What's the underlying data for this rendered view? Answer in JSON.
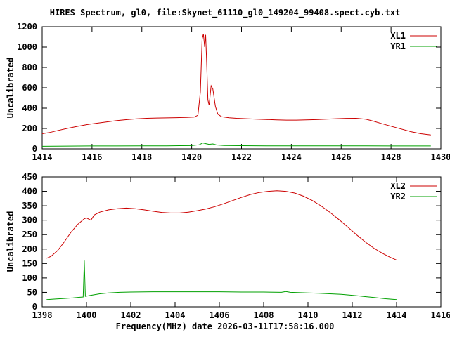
{
  "title": "HIRES Spectrum, gl0, file:Skynet_61110_gl0_149204_99408.spect.cyb.txt",
  "xlabel": "Frequency(MHz) date 2026-03-11T17:58:16.000",
  "colors": {
    "red": "#cc0000",
    "green": "#00a000",
    "axis": "#000000",
    "background": "#ffffff"
  },
  "chart_data": [
    {
      "type": "line",
      "ylabel": "Uncalibrated",
      "xlim": [
        1414,
        1430
      ],
      "ylim": [
        0,
        1200
      ],
      "xticks": [
        1414,
        1416,
        1418,
        1420,
        1422,
        1424,
        1426,
        1428,
        1430
      ],
      "yticks": [
        0,
        200,
        400,
        600,
        800,
        1000,
        1200
      ],
      "grid": false,
      "legend_position": "top-right",
      "series": [
        {
          "name": "XL1",
          "color": "#cc0000",
          "points": [
            [
              1414.0,
              148
            ],
            [
              1414.3,
              160
            ],
            [
              1414.6,
              178
            ],
            [
              1415.0,
              200
            ],
            [
              1415.4,
              220
            ],
            [
              1415.8,
              238
            ],
            [
              1416.2,
              252
            ],
            [
              1416.6,
              265
            ],
            [
              1417.0,
              277
            ],
            [
              1417.4,
              287
            ],
            [
              1417.8,
              295
            ],
            [
              1418.2,
              300
            ],
            [
              1418.6,
              303
            ],
            [
              1419.0,
              304
            ],
            [
              1419.4,
              306
            ],
            [
              1419.8,
              308
            ],
            [
              1420.1,
              312
            ],
            [
              1420.25,
              330
            ],
            [
              1420.35,
              560
            ],
            [
              1420.42,
              1080
            ],
            [
              1420.47,
              1130
            ],
            [
              1420.52,
              1000
            ],
            [
              1420.56,
              1120
            ],
            [
              1420.6,
              860
            ],
            [
              1420.65,
              480
            ],
            [
              1420.7,
              430
            ],
            [
              1420.78,
              620
            ],
            [
              1420.85,
              590
            ],
            [
              1420.95,
              420
            ],
            [
              1421.05,
              340
            ],
            [
              1421.2,
              315
            ],
            [
              1421.5,
              305
            ],
            [
              1421.8,
              300
            ],
            [
              1422.2,
              296
            ],
            [
              1422.6,
              292
            ],
            [
              1423.0,
              288
            ],
            [
              1423.4,
              284
            ],
            [
              1423.8,
              282
            ],
            [
              1424.2,
              282
            ],
            [
              1424.6,
              284
            ],
            [
              1425.0,
              287
            ],
            [
              1425.4,
              291
            ],
            [
              1425.8,
              296
            ],
            [
              1426.2,
              299
            ],
            [
              1426.6,
              300
            ],
            [
              1427.0,
              290
            ],
            [
              1427.3,
              272
            ],
            [
              1427.6,
              250
            ],
            [
              1428.0,
              222
            ],
            [
              1428.4,
              195
            ],
            [
              1428.8,
              168
            ],
            [
              1429.2,
              148
            ],
            [
              1429.6,
              136
            ]
          ]
        },
        {
          "name": "YR1",
          "color": "#00a000",
          "points": [
            [
              1414.0,
              25
            ],
            [
              1415.0,
              27
            ],
            [
              1416.0,
              28
            ],
            [
              1417.0,
              28
            ],
            [
              1418.0,
              29
            ],
            [
              1419.0,
              30
            ],
            [
              1420.0,
              32
            ],
            [
              1420.3,
              40
            ],
            [
              1420.45,
              58
            ],
            [
              1420.55,
              52
            ],
            [
              1420.7,
              44
            ],
            [
              1420.85,
              48
            ],
            [
              1421.0,
              38
            ],
            [
              1421.3,
              33
            ],
            [
              1422.0,
              31
            ],
            [
              1423.0,
              30
            ],
            [
              1424.0,
              30
            ],
            [
              1425.0,
              30
            ],
            [
              1426.0,
              30
            ],
            [
              1427.0,
              29
            ],
            [
              1428.0,
              28
            ],
            [
              1429.0,
              28
            ],
            [
              1429.6,
              28
            ]
          ]
        }
      ]
    },
    {
      "type": "line",
      "ylabel": "Uncalibrated",
      "xlim": [
        1398,
        1416
      ],
      "ylim": [
        0,
        450
      ],
      "xticks": [
        1398,
        1400,
        1402,
        1404,
        1406,
        1408,
        1410,
        1412,
        1414,
        1416
      ],
      "yticks": [
        0,
        50,
        100,
        150,
        200,
        250,
        300,
        350,
        400,
        450
      ],
      "grid": false,
      "legend_position": "top-right",
      "series": [
        {
          "name": "XL2",
          "color": "#cc0000",
          "points": [
            [
              1398.2,
              168
            ],
            [
              1398.4,
              175
            ],
            [
              1398.7,
              195
            ],
            [
              1399.0,
              225
            ],
            [
              1399.3,
              258
            ],
            [
              1399.6,
              285
            ],
            [
              1399.9,
              305
            ],
            [
              1400.0,
              308
            ],
            [
              1400.2,
              300
            ],
            [
              1400.35,
              318
            ],
            [
              1400.6,
              328
            ],
            [
              1401.0,
              336
            ],
            [
              1401.4,
              340
            ],
            [
              1401.8,
              342
            ],
            [
              1402.2,
              340
            ],
            [
              1402.6,
              336
            ],
            [
              1403.0,
              331
            ],
            [
              1403.4,
              327
            ],
            [
              1403.8,
              325
            ],
            [
              1404.2,
              325
            ],
            [
              1404.6,
              328
            ],
            [
              1405.0,
              333
            ],
            [
              1405.4,
              339
            ],
            [
              1405.8,
              347
            ],
            [
              1406.2,
              357
            ],
            [
              1406.6,
              368
            ],
            [
              1407.0,
              379
            ],
            [
              1407.4,
              389
            ],
            [
              1407.8,
              396
            ],
            [
              1408.2,
              400
            ],
            [
              1408.6,
              402
            ],
            [
              1409.0,
              400
            ],
            [
              1409.4,
              394
            ],
            [
              1409.8,
              383
            ],
            [
              1410.2,
              368
            ],
            [
              1410.6,
              349
            ],
            [
              1411.0,
              327
            ],
            [
              1411.4,
              302
            ],
            [
              1411.8,
              276
            ],
            [
              1412.2,
              249
            ],
            [
              1412.6,
              224
            ],
            [
              1413.0,
              202
            ],
            [
              1413.4,
              184
            ],
            [
              1413.7,
              172
            ],
            [
              1414.0,
              162
            ]
          ]
        },
        {
          "name": "YR2",
          "color": "#00a000",
          "points": [
            [
              1398.2,
              25
            ],
            [
              1398.6,
              27
            ],
            [
              1399.0,
              29
            ],
            [
              1399.4,
              31
            ],
            [
              1399.7,
              33
            ],
            [
              1399.85,
              34
            ],
            [
              1399.9,
              160
            ],
            [
              1399.95,
              36
            ],
            [
              1400.2,
              40
            ],
            [
              1400.6,
              45
            ],
            [
              1401.0,
              48
            ],
            [
              1401.5,
              50
            ],
            [
              1402.0,
              51
            ],
            [
              1403.0,
              52
            ],
            [
              1404.0,
              52
            ],
            [
              1405.0,
              52
            ],
            [
              1406.0,
              52
            ],
            [
              1407.0,
              51
            ],
            [
              1408.0,
              51
            ],
            [
              1408.8,
              50
            ],
            [
              1409.0,
              53
            ],
            [
              1409.2,
              50
            ],
            [
              1410.0,
              48
            ],
            [
              1410.5,
              47
            ],
            [
              1411.0,
              45
            ],
            [
              1411.5,
              43
            ],
            [
              1412.0,
              40
            ],
            [
              1412.5,
              36
            ],
            [
              1413.0,
              32
            ],
            [
              1413.5,
              28
            ],
            [
              1414.0,
              25
            ]
          ]
        }
      ]
    }
  ]
}
